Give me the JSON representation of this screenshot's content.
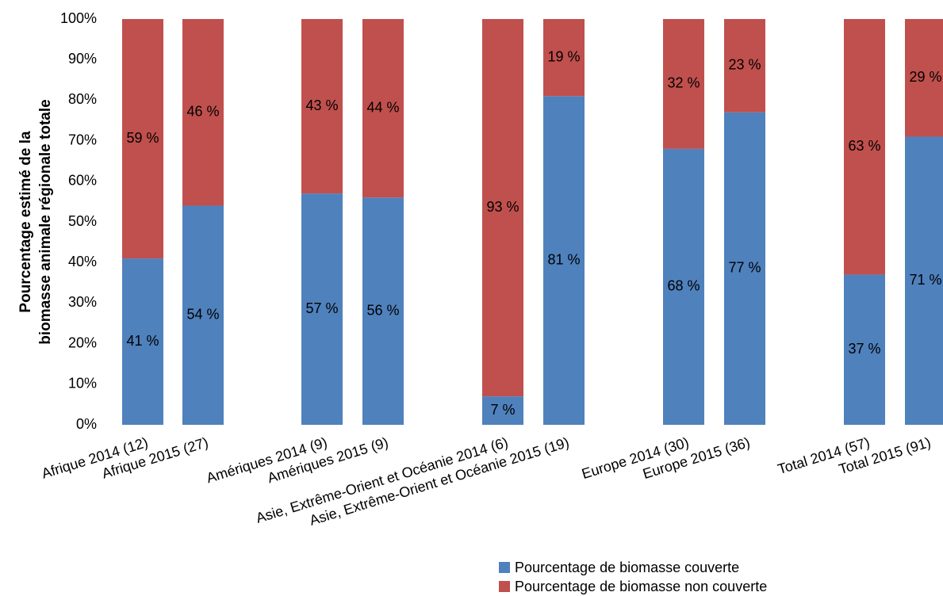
{
  "chart_data": {
    "type": "bar",
    "stacked": true,
    "percent_stacked": true,
    "ylabel": "Pourcentage estimé de la biomasse animale régionale totale",
    "ylabel_lines": [
      "Pourcentage estimé de la",
      "biomasse animale régionale totale"
    ],
    "xlabel": "",
    "ylim": [
      0,
      100
    ],
    "yticks": [
      "0%",
      "10%",
      "20%",
      "30%",
      "40%",
      "50%",
      "60%",
      "70%",
      "80%",
      "90%",
      "100%"
    ],
    "grid": false,
    "legend_position": "bottom-right",
    "groups": [
      [
        "Afrique 2014 (12)",
        "Afrique 2015 (27)"
      ],
      [
        "Amériques 2014 (9)",
        "Amériques 2015 (9)"
      ],
      [
        "Asie, Extrême-Orient et Océanie 2014 (6)",
        "Asie, Extrême-Orient et Océanie 2015 (19)"
      ],
      [
        "Europe 2014 (30)",
        "Europe 2015 (36)"
      ],
      [
        "Total 2014 (57)",
        "Total 2015 (91)"
      ]
    ],
    "categories": [
      "Afrique 2014 (12)",
      "Afrique 2015 (27)",
      "Amériques 2014 (9)",
      "Amériques 2015 (9)",
      "Asie, Extrême-Orient et Océanie 2014 (6)",
      "Asie, Extrême-Orient et Océanie 2015 (19)",
      "Europe 2014 (30)",
      "Europe 2015 (36)",
      "Total 2014 (57)",
      "Total 2015 (91)"
    ],
    "series": [
      {
        "name": "Pourcentage de biomasse couverte",
        "color": "#4f81bd",
        "values": [
          41,
          54,
          57,
          56,
          7,
          81,
          68,
          77,
          37,
          71
        ],
        "labels": [
          "41 %",
          "54 %",
          "57 %",
          "56 %",
          "7 %",
          "81 %",
          "68 %",
          "77 %",
          "37 %",
          "71 %"
        ]
      },
      {
        "name": "Pourcentage de biomasse non couverte",
        "color": "#c0504d",
        "values": [
          59,
          46,
          43,
          44,
          93,
          19,
          32,
          23,
          63,
          29
        ],
        "labels": [
          "59 %",
          "46 %",
          "43 %",
          "44 %",
          "93 %",
          "19 %",
          "32 %",
          "23 %",
          "63 %",
          "29 %"
        ]
      }
    ]
  }
}
